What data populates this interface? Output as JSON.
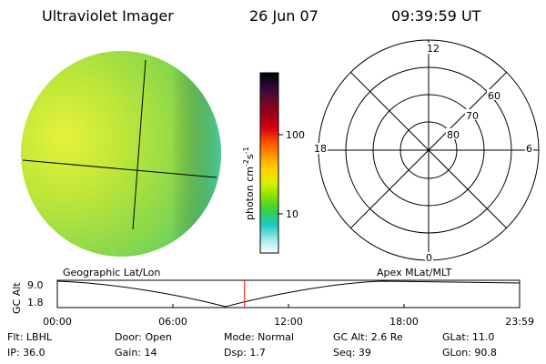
{
  "header": {
    "instrument": "Ultraviolet Imager",
    "date": "26 Jun 07",
    "time": "09:39:59 UT"
  },
  "colorbar": {
    "unit_label": "photon cm",
    "unit_sup1": "-2",
    "unit_s": "s",
    "unit_sup2": "-1",
    "tick_labels": [
      "100",
      "10"
    ],
    "scale": "log",
    "colors": [
      "#000000",
      "#2a0a3a",
      "#6a0a2a",
      "#a00018",
      "#d80010",
      "#ff5000",
      "#ff9900",
      "#ffd200",
      "#d8f000",
      "#7ee000",
      "#30d050",
      "#20c8c8",
      "#9ee8e8",
      "#ffffff"
    ]
  },
  "polar_plot": {
    "mlt_labels": {
      "top": "12",
      "bottom": "0",
      "left": "18",
      "right": "6"
    },
    "lat_labels": [
      "60",
      "70",
      "80"
    ]
  },
  "strip": {
    "left_label": "Geographic Lat/Lon",
    "right_label": "Apex MLat/MLT",
    "axis_title": "GC Alt",
    "y_labels": [
      "9.0",
      "1.8"
    ],
    "time_ticks": [
      "00:00",
      "06:00",
      "12:00",
      "18:00",
      "23:59"
    ],
    "current_time_fraction": 0.405,
    "marker_color": "#ff0000"
  },
  "status": {
    "flt": "Flt: LBHL",
    "ip": "IP: 36.0",
    "door": "Door: Open",
    "gain": "Gain: 14",
    "mode": "Mode:  Normal",
    "dsp": "Dsp:      1.7",
    "gc_alt": "GC Alt: 2.6 Re",
    "seq": "Seq: 39",
    "glat": "GLat:   11.0",
    "glon": "GLon:   90.8"
  }
}
